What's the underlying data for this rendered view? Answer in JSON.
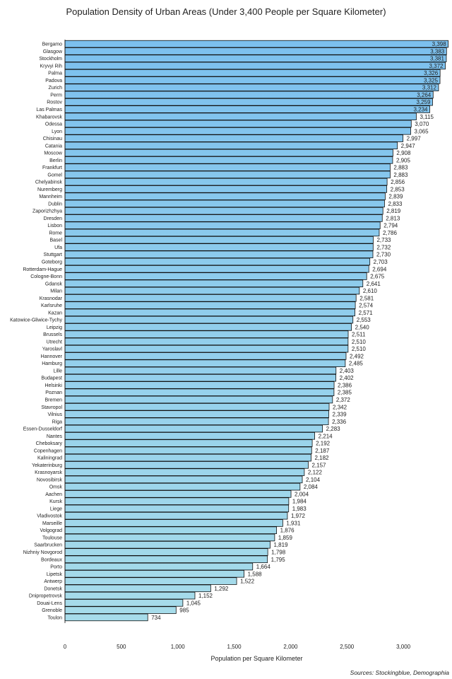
{
  "chart_data": {
    "type": "bar",
    "orientation": "horizontal",
    "title": "Population Density of Urban Areas (Under 3,400 People per Square Kilometer)",
    "xlabel": "Population per Square Kilometer",
    "ylabel": "",
    "xlim": [
      0,
      3400
    ],
    "x_ticks": [
      "0",
      "500",
      "1,000",
      "1,500",
      "2,000",
      "2,500",
      "3,000"
    ],
    "x_tick_values": [
      0,
      500,
      1000,
      1500,
      2000,
      2500,
      3000
    ],
    "grid": false,
    "legend": "none",
    "bar_color_top": "#7cc0ee",
    "bar_color_bottom": "#a7dcea",
    "bar_edge_color": "#111111",
    "categories": [
      "Bergamo",
      "Glasgow",
      "Stockholm",
      "Kryvyi Rih",
      "Palma",
      "Padova",
      "Zurich",
      "Perm",
      "Rostov",
      "Las Palmas",
      "Khabarovsk",
      "Odessa",
      "Lyon",
      "Chisinau",
      "Catania",
      "Moscow",
      "Berlin",
      "Frankfurt",
      "Gomel",
      "Chelyabinsk",
      "Nuremberg",
      "Mannheim",
      "Dublin",
      "Zaporizhzhya",
      "Dresden",
      "Lisbon",
      "Rome",
      "Basel",
      "Ufa",
      "Stuttgart",
      "Goteborg",
      "Rotterdam-Hague",
      "Cologne-Bonn",
      "Gdansk",
      "Milan",
      "Krasnodar",
      "Karlsruhe",
      "Kazan",
      "Katowice-Gliwice-Tychy",
      "Leipzig",
      "Brussels",
      "Utrecht",
      "Yaroslavl",
      "Hannover",
      "Hamburg",
      "Lille",
      "Budapest",
      "Helsinki",
      "Poznan",
      "Bremen",
      "Stavropol",
      "Vilnius",
      "Riga",
      "Essen-Dusseldorf",
      "Nantes",
      "Cheboksary",
      "Copenhagen",
      "Kaliningrad",
      "Yekaterinburg",
      "Krasnoyarsk",
      "Novosibirsk",
      "Omsk",
      "Aachen",
      "Kursk",
      "Liege",
      "Vladivostok",
      "Marseille",
      "Volgograd",
      "Toulouse",
      "Saarbrucken",
      "Nizhniy Novgorod",
      "Bordeaux",
      "Porto",
      "Lipetsk",
      "Antwerp",
      "Donetsk",
      "Dnipropetrovsk",
      "Douai-Lens",
      "Grenoble",
      "Toulon"
    ],
    "values": [
      3398,
      3383,
      3381,
      3372,
      3326,
      3325,
      3312,
      3264,
      3259,
      3234,
      3115,
      3070,
      3065,
      2997,
      2947,
      2908,
      2905,
      2883,
      2883,
      2856,
      2853,
      2839,
      2833,
      2819,
      2813,
      2794,
      2786,
      2733,
      2732,
      2730,
      2703,
      2694,
      2675,
      2641,
      2610,
      2581,
      2574,
      2571,
      2553,
      2540,
      2511,
      2510,
      2510,
      2492,
      2485,
      2403,
      2402,
      2386,
      2385,
      2372,
      2342,
      2339,
      2336,
      2283,
      2214,
      2192,
      2187,
      2182,
      2157,
      2122,
      2104,
      2084,
      2004,
      1984,
      1983,
      1972,
      1931,
      1876,
      1859,
      1819,
      1798,
      1795,
      1664,
      1588,
      1522,
      1292,
      1152,
      1045,
      985,
      734
    ],
    "value_labels": [
      "3,398",
      "3,383",
      "3,381",
      "3,372",
      "3,326",
      "3,325",
      "3,312",
      "3,264",
      "3,259",
      "3,234",
      "3,115",
      "3,070",
      "3,065",
      "2,997",
      "2,947",
      "2,908",
      "2,905",
      "2,883",
      "2,883",
      "2,856",
      "2,853",
      "2,839",
      "2,833",
      "2,819",
      "2,813",
      "2,794",
      "2,786",
      "2,733",
      "2,732",
      "2,730",
      "2,703",
      "2,694",
      "2,675",
      "2,641",
      "2,610",
      "2,581",
      "2,574",
      "2,571",
      "2,553",
      "2,540",
      "2,511",
      "2,510",
      "2,510",
      "2,492",
      "2,485",
      "2,403",
      "2,402",
      "2,386",
      "2,385",
      "2,372",
      "2,342",
      "2,339",
      "2,336",
      "2,283",
      "2,214",
      "2,192",
      "2,187",
      "2,182",
      "2,157",
      "2,122",
      "2,104",
      "2,084",
      "2,004",
      "1,984",
      "1,983",
      "1,972",
      "1,931",
      "1,876",
      "1,859",
      "1,819",
      "1,798",
      "1,795",
      "1,664",
      "1,588",
      "1,522",
      "1,292",
      "1,152",
      "1,045",
      "985",
      "734"
    ]
  },
  "source": "Sources: Stockingblue, Demographia"
}
